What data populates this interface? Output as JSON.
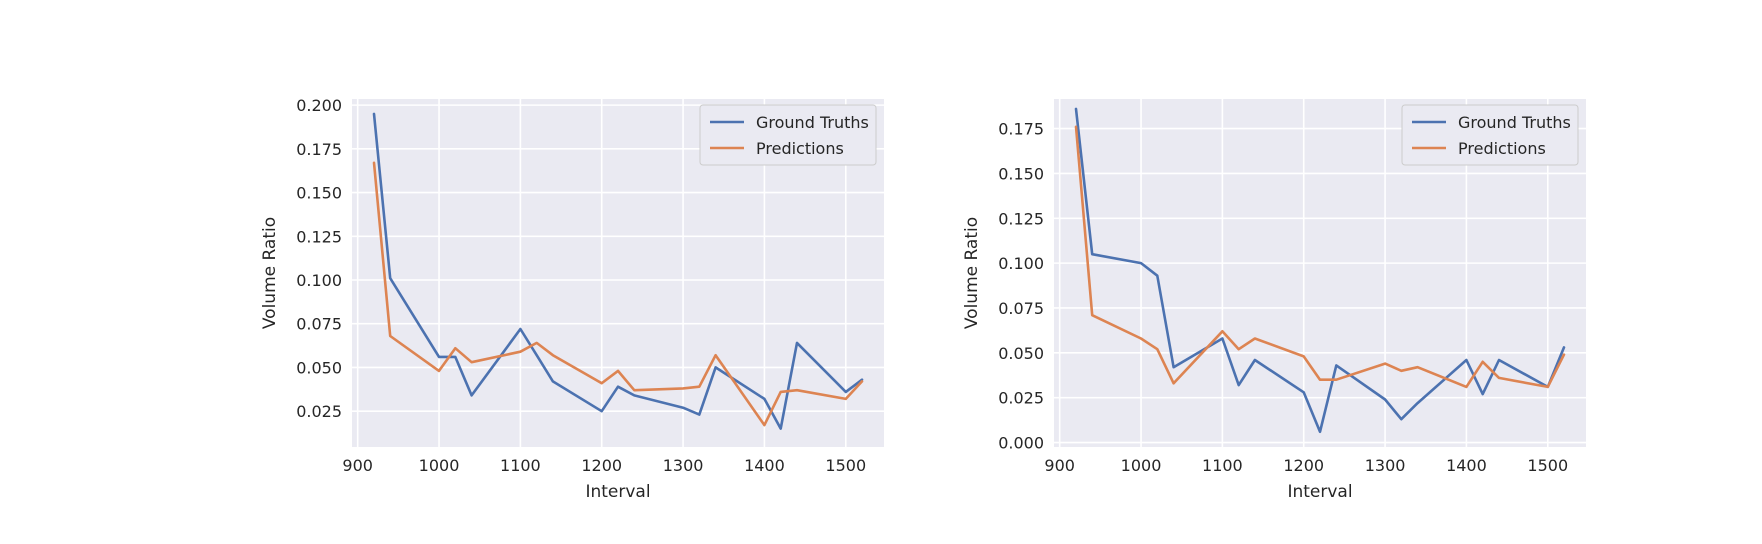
{
  "chart_data": [
    {
      "type": "line",
      "xlabel": "Interval",
      "ylabel": "Volume Ratio",
      "xlim": [
        893,
        1547
      ],
      "ylim": [
        0.0045,
        0.2035
      ],
      "xticks": [
        "900",
        "1000",
        "1100",
        "1200",
        "1300",
        "1400",
        "1500"
      ],
      "yticks": [
        "0.025",
        "0.050",
        "0.075",
        "0.100",
        "0.125",
        "0.150",
        "0.175",
        "0.200"
      ],
      "grid": true,
      "legend_position": "top-right",
      "series": [
        {
          "name": "Ground Truths",
          "color": "#4c72b0",
          "x": [
            920,
            940,
            1000,
            1020,
            1040,
            1100,
            1120,
            1140,
            1200,
            1220,
            1240,
            1300,
            1320,
            1340,
            1400,
            1420,
            1440,
            1500,
            1520
          ],
          "y": [
            0.195,
            0.101,
            0.056,
            0.056,
            0.034,
            0.072,
            0.057,
            0.042,
            0.025,
            0.039,
            0.034,
            0.027,
            0.023,
            0.05,
            0.032,
            0.015,
            0.064,
            0.036,
            0.043
          ]
        },
        {
          "name": "Predictions",
          "color": "#dd8452",
          "x": [
            920,
            940,
            1000,
            1020,
            1040,
            1100,
            1120,
            1140,
            1200,
            1220,
            1240,
            1300,
            1320,
            1340,
            1400,
            1420,
            1440,
            1500,
            1520
          ],
          "y": [
            0.167,
            0.068,
            0.048,
            0.061,
            0.053,
            0.059,
            0.064,
            0.057,
            0.041,
            0.048,
            0.037,
            0.038,
            0.039,
            0.057,
            0.017,
            0.036,
            0.037,
            0.032,
            0.042
          ]
        }
      ]
    },
    {
      "type": "line",
      "xlabel": "Interval",
      "ylabel": "Volume Ratio",
      "xlim": [
        893,
        1547
      ],
      "ylim": [
        -0.0025,
        0.1915
      ],
      "xticks": [
        "900",
        "1000",
        "1100",
        "1200",
        "1300",
        "1400",
        "1500"
      ],
      "yticks": [
        "0.000",
        "0.025",
        "0.050",
        "0.075",
        "0.100",
        "0.125",
        "0.150",
        "0.175"
      ],
      "grid": true,
      "legend_position": "top-right",
      "series": [
        {
          "name": "Ground Truths",
          "color": "#4c72b0",
          "x": [
            920,
            940,
            1000,
            1020,
            1040,
            1100,
            1120,
            1140,
            1200,
            1220,
            1240,
            1300,
            1320,
            1340,
            1400,
            1420,
            1440,
            1500,
            1520
          ],
          "y": [
            0.186,
            0.105,
            0.1,
            0.093,
            0.042,
            0.058,
            0.032,
            0.046,
            0.028,
            0.006,
            0.043,
            0.024,
            0.013,
            0.022,
            0.046,
            0.027,
            0.046,
            0.031,
            0.053
          ]
        },
        {
          "name": "Predictions",
          "color": "#dd8452",
          "x": [
            920,
            940,
            1000,
            1020,
            1040,
            1100,
            1120,
            1140,
            1200,
            1220,
            1240,
            1300,
            1320,
            1340,
            1400,
            1420,
            1440,
            1500,
            1520
          ],
          "y": [
            0.176,
            0.071,
            0.058,
            0.052,
            0.033,
            0.062,
            0.052,
            0.058,
            0.048,
            0.035,
            0.035,
            0.044,
            0.04,
            0.042,
            0.031,
            0.045,
            0.036,
            0.031,
            0.049
          ]
        }
      ]
    }
  ]
}
